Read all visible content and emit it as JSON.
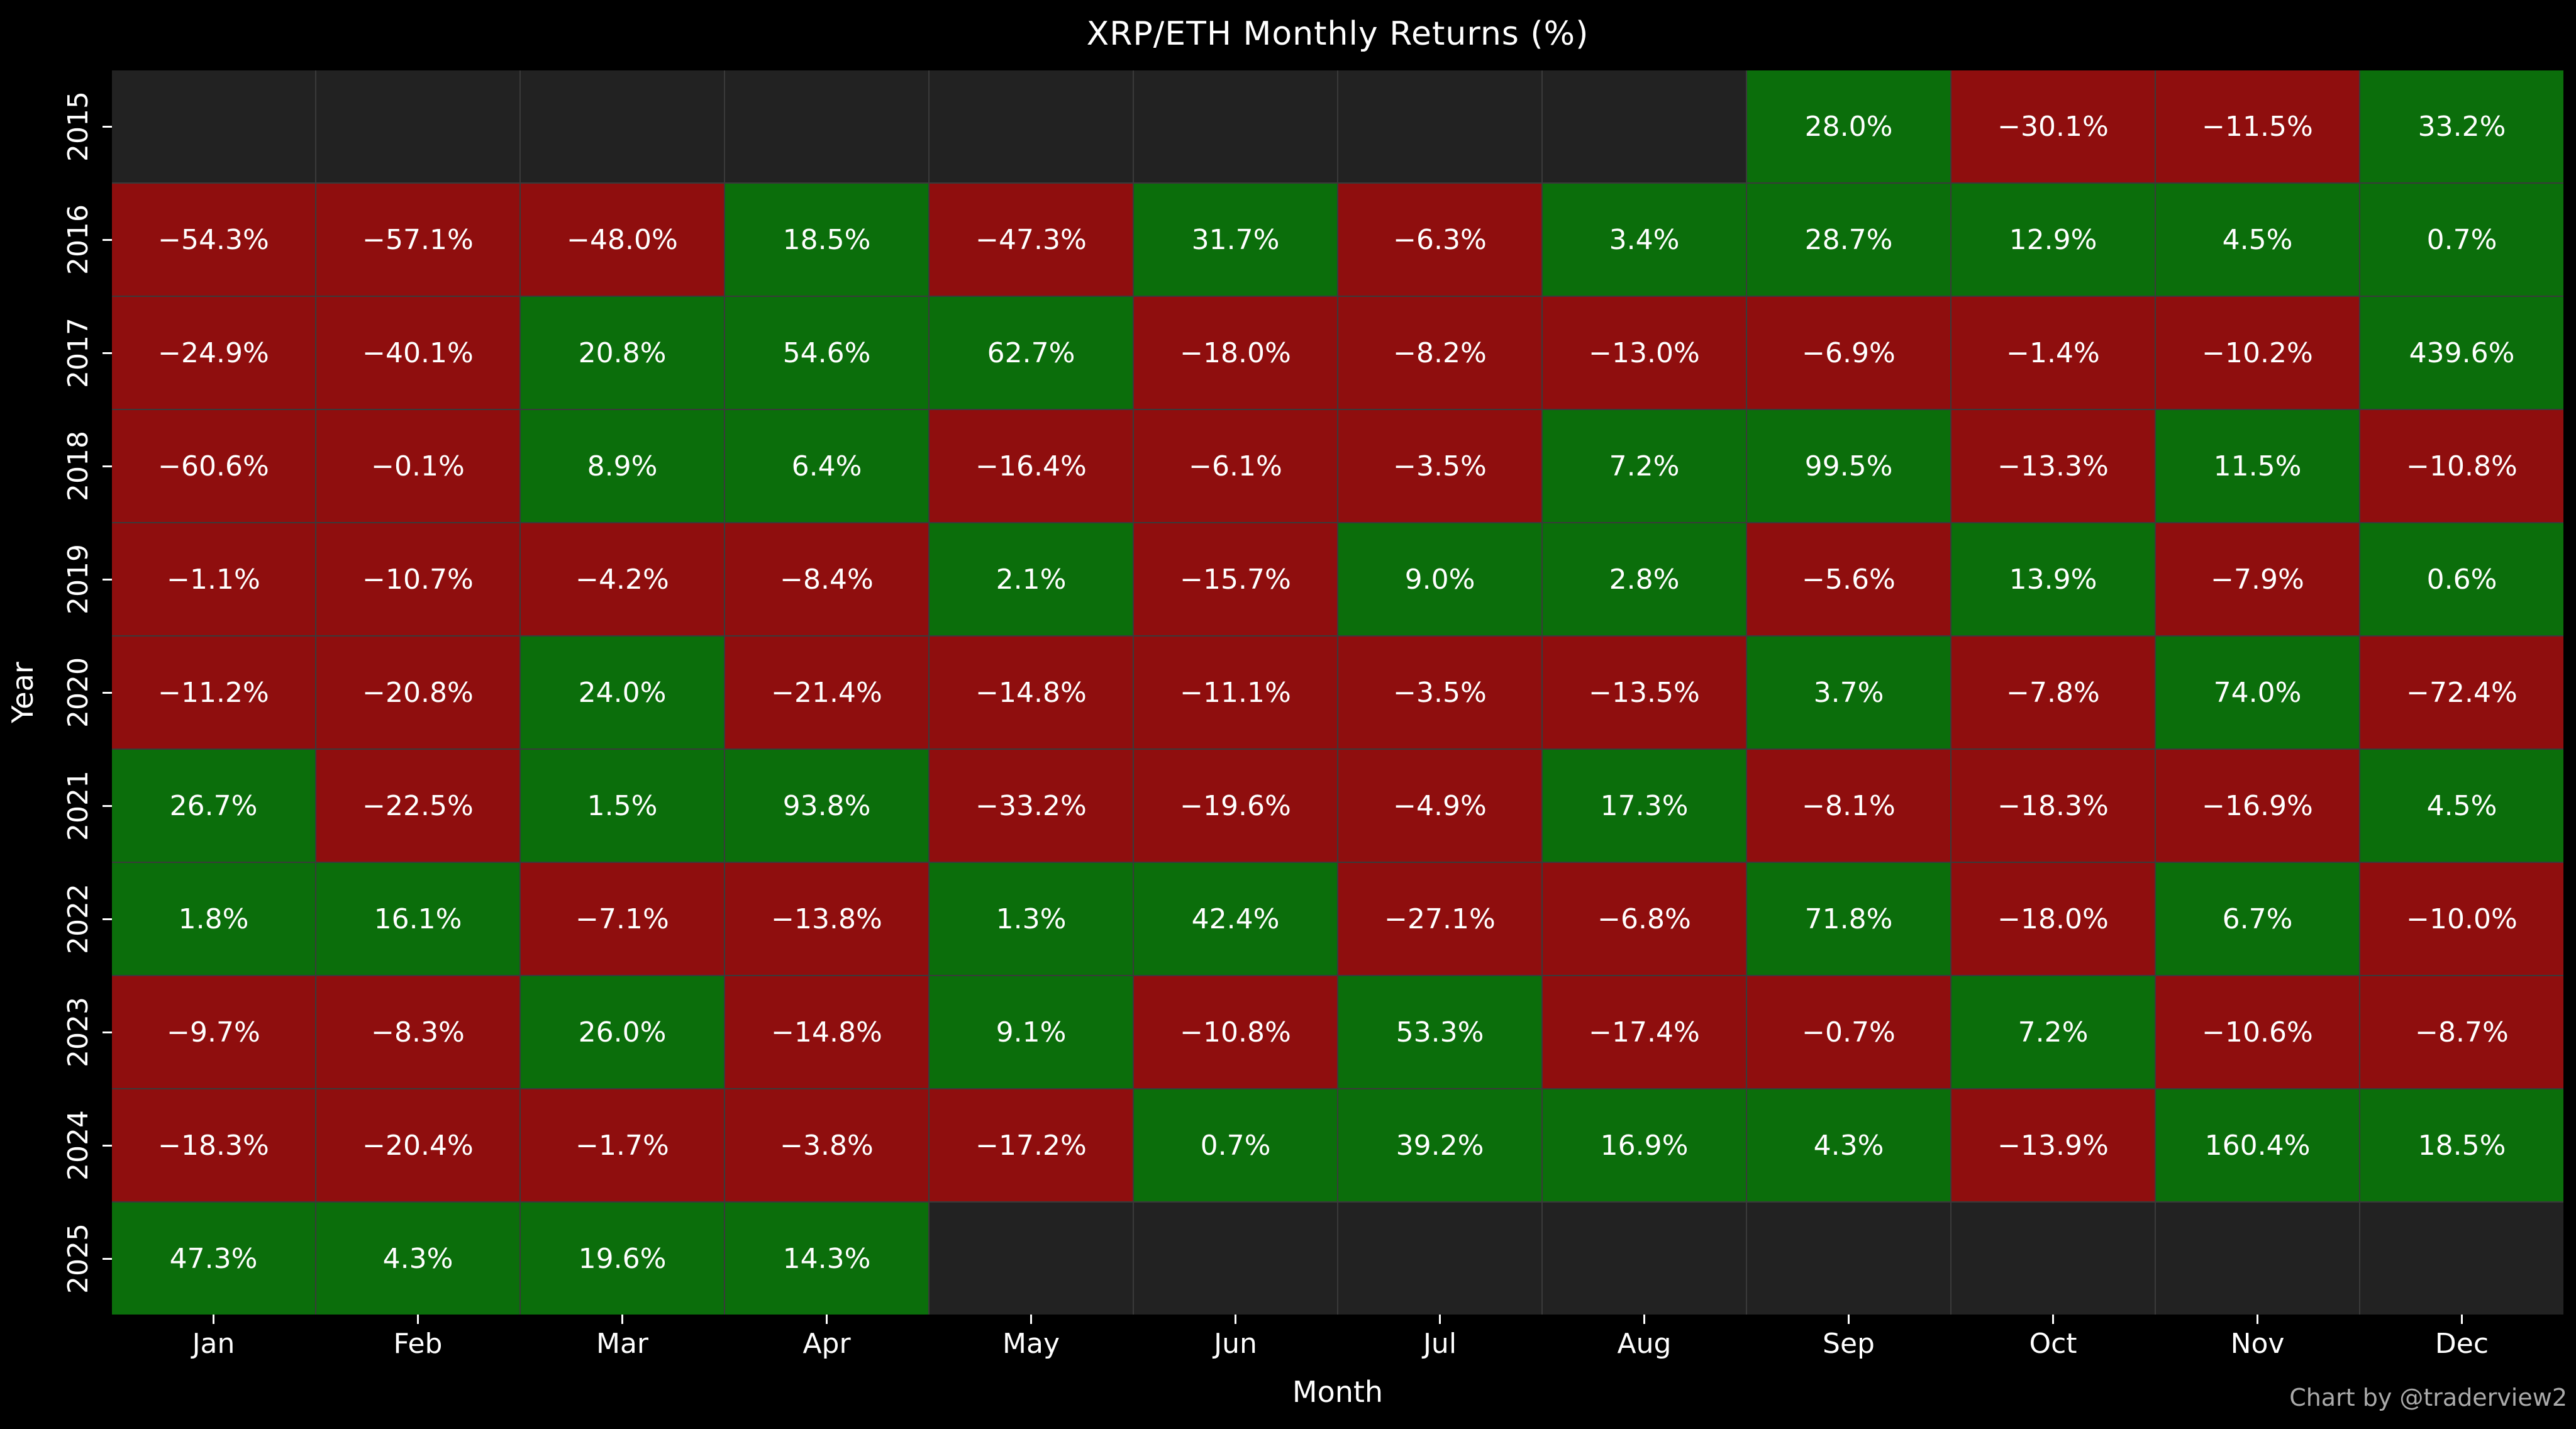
{
  "title": "XRP/ETH Monthly Returns (%)",
  "watermark": "Chart by @traderview2",
  "colors": {
    "background": "#000000",
    "positive": "#0b6e0b",
    "negative": "#8f0e0e",
    "empty": "#222222",
    "grid": "#3a3a3a",
    "text": "#ffffff",
    "watermark_text": "#aaaaaa"
  },
  "chart_data": {
    "type": "heatmap",
    "title": "XRP/ETH Monthly Returns (%)",
    "xlabel": "Month",
    "ylabel": "Year",
    "unit": "%",
    "x_categories": [
      "Jan",
      "Feb",
      "Mar",
      "Apr",
      "May",
      "Jun",
      "Jul",
      "Aug",
      "Sep",
      "Oct",
      "Nov",
      "Dec"
    ],
    "y_categories": [
      "2015",
      "2016",
      "2017",
      "2018",
      "2019",
      "2020",
      "2021",
      "2022",
      "2023",
      "2024",
      "2025"
    ],
    "legend_position": "none",
    "grid": true,
    "color_rule": "green if value >= 0, red if value < 0, dark gray if missing",
    "series": [
      {
        "name": "2015",
        "values": [
          null,
          null,
          null,
          null,
          null,
          null,
          null,
          null,
          28.0,
          -30.1,
          -11.5,
          33.2
        ]
      },
      {
        "name": "2016",
        "values": [
          -54.3,
          -57.1,
          -48.0,
          18.5,
          -47.3,
          31.7,
          -6.3,
          3.4,
          28.7,
          12.9,
          4.5,
          0.7
        ]
      },
      {
        "name": "2017",
        "values": [
          -24.9,
          -40.1,
          20.8,
          54.6,
          62.7,
          -18.0,
          -8.2,
          -13.0,
          -6.9,
          -1.4,
          -10.2,
          439.6
        ]
      },
      {
        "name": "2018",
        "values": [
          -60.6,
          -0.1,
          8.9,
          6.4,
          -16.4,
          -6.1,
          -3.5,
          7.2,
          99.5,
          -13.3,
          11.5,
          -10.8
        ]
      },
      {
        "name": "2019",
        "values": [
          -1.1,
          -10.7,
          -4.2,
          -8.4,
          2.1,
          -15.7,
          9.0,
          2.8,
          -5.6,
          13.9,
          -7.9,
          0.6
        ]
      },
      {
        "name": "2020",
        "values": [
          -11.2,
          -20.8,
          24.0,
          -21.4,
          -14.8,
          -11.1,
          -3.5,
          -13.5,
          3.7,
          -7.8,
          74.0,
          -72.4
        ]
      },
      {
        "name": "2021",
        "values": [
          26.7,
          -22.5,
          1.5,
          93.8,
          -33.2,
          -19.6,
          -4.9,
          17.3,
          -8.1,
          -18.3,
          -16.9,
          4.5
        ]
      },
      {
        "name": "2022",
        "values": [
          1.8,
          16.1,
          -7.1,
          -13.8,
          1.3,
          42.4,
          -27.1,
          -6.8,
          71.8,
          -18.0,
          6.7,
          -10.0
        ]
      },
      {
        "name": "2023",
        "values": [
          -9.7,
          -8.3,
          26.0,
          -14.8,
          9.1,
          -10.8,
          53.3,
          -17.4,
          -0.7,
          7.2,
          -10.6,
          -8.7
        ]
      },
      {
        "name": "2024",
        "values": [
          -18.3,
          -20.4,
          -1.7,
          -3.8,
          -17.2,
          0.7,
          39.2,
          16.9,
          4.3,
          -13.9,
          160.4,
          18.5
        ]
      },
      {
        "name": "2025",
        "values": [
          47.3,
          4.3,
          19.6,
          14.3,
          null,
          null,
          null,
          null,
          null,
          null,
          null,
          null
        ]
      }
    ]
  }
}
